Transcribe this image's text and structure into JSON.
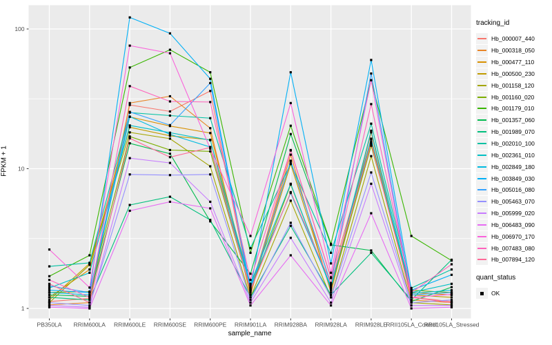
{
  "chart_data": {
    "type": "line",
    "title": "",
    "xlabel": "sample_name",
    "ylabel": "FPKM + 1",
    "y_scale": "log10",
    "y_ticks": [
      1,
      10,
      100
    ],
    "y_minor_breaks": [
      3.162,
      31.62
    ],
    "ylim": [
      0.93,
      135
    ],
    "grid": true,
    "legend_position": "right",
    "legend_title": "tracking_id",
    "quant_legend": {
      "title": "quant_status",
      "items": [
        {
          "label": "OK"
        }
      ]
    },
    "panel_bg": "#EBEBEB",
    "grid_color": "#FFFFFF",
    "tick_text_color": "#4D4D4D",
    "point_color": "#000000",
    "categories": [
      "PB350LA",
      "RRIM600LA",
      "RRIM600LE",
      "RRIM600SE",
      "RRIM600PE",
      "RRIM901LA",
      "RRIM928BA",
      "RRIM928LA",
      "RRIM928LE",
      "RRII105LA_Control",
      "RRII105LA_Stressed"
    ],
    "series": [
      {
        "name": "Hb_000007_440",
        "color": "#F8766D",
        "values": [
          1.12,
          1.18,
          28.6,
          25.7,
          36.0,
          1.3,
          13.5,
          1.65,
          16.2,
          1.2,
          1.12
        ]
      },
      {
        "name": "Hb_000318_050",
        "color": "#E88526",
        "values": [
          1.06,
          1.1,
          29.5,
          33.0,
          19.5,
          1.25,
          12.6,
          1.3,
          18.2,
          1.15,
          1.1
        ]
      },
      {
        "name": "Hb_000477_110",
        "color": "#D89000",
        "values": [
          1.2,
          1.9,
          23.5,
          20.2,
          18.0,
          1.4,
          11.3,
          1.5,
          15.6,
          1.3,
          1.25
        ]
      },
      {
        "name": "Hb_000500_230",
        "color": "#C09B00",
        "values": [
          1.15,
          2.1,
          19.8,
          17.2,
          16.1,
          1.3,
          10.8,
          1.35,
          15.1,
          1.25,
          1.2
        ]
      },
      {
        "name": "Hb_001158_120",
        "color": "#A3A500",
        "values": [
          1.1,
          2.05,
          18.2,
          16.4,
          10.4,
          1.2,
          5.9,
          1.2,
          12.3,
          1.1,
          1.06
        ]
      },
      {
        "name": "Hb_001160_020",
        "color": "#7CAE00",
        "values": [
          1.3,
          1.32,
          17.0,
          13.6,
          13.3,
          1.35,
          7.7,
          1.4,
          14.6,
          1.35,
          1.3
        ]
      },
      {
        "name": "Hb_001179_010",
        "color": "#39B600",
        "values": [
          1.7,
          2.4,
          53.0,
          71.0,
          49.0,
          2.5,
          20.3,
          2.9,
          43.0,
          3.3,
          2.2
        ]
      },
      {
        "name": "Hb_001357_060",
        "color": "#00BB4E",
        "values": [
          1.25,
          1.22,
          15.2,
          12.8,
          4.2,
          1.77,
          17.7,
          2.85,
          2.6,
          1.12,
          1.42
        ]
      },
      {
        "name": "Hb_001989_070",
        "color": "#00BF7D",
        "values": [
          1.2,
          1.15,
          5.5,
          6.3,
          4.3,
          1.2,
          3.9,
          1.25,
          2.5,
          1.15,
          2.23
        ]
      },
      {
        "name": "Hb_002010_100",
        "color": "#00C1A3",
        "values": [
          2.0,
          2.12,
          25.2,
          24.0,
          23.0,
          2.7,
          10.9,
          2.5,
          21.0,
          1.4,
          1.9
        ]
      },
      {
        "name": "Hb_002361_010",
        "color": "#00BFC4",
        "values": [
          1.4,
          1.8,
          20.4,
          18.1,
          16.0,
          1.5,
          7.8,
          1.39,
          18.7,
          1.3,
          1.5
        ]
      },
      {
        "name": "Hb_002849_180",
        "color": "#00BAE0",
        "values": [
          1.3,
          1.25,
          23.6,
          17.6,
          14.3,
          1.45,
          6.7,
          1.45,
          16.4,
          1.28,
          1.35
        ]
      },
      {
        "name": "Hb_003849_030",
        "color": "#00B0F6",
        "values": [
          1.35,
          1.3,
          121.0,
          93.0,
          44.0,
          1.4,
          49.0,
          2.1,
          60.0,
          1.35,
          1.74
        ]
      },
      {
        "name": "Hb_005016_080",
        "color": "#35A2FF",
        "values": [
          1.45,
          1.3,
          25.5,
          20.5,
          41.0,
          1.35,
          11.4,
          1.5,
          48.0,
          1.25,
          1.3
        ]
      },
      {
        "name": "Hb_005463_070",
        "color": "#9590FF",
        "values": [
          1.1,
          1.05,
          9.1,
          9.0,
          9.1,
          1.15,
          4.1,
          1.2,
          9.4,
          1.1,
          1.15
        ]
      },
      {
        "name": "Hb_005999_020",
        "color": "#C77CFF",
        "values": [
          1.05,
          1.02,
          11.9,
          11.0,
          5.8,
          1.1,
          3.2,
          1.1,
          7.8,
          1.05,
          1.05
        ]
      },
      {
        "name": "Hb_006483_090",
        "color": "#E76BF3",
        "values": [
          1.02,
          1.0,
          5.0,
          5.8,
          5.2,
          1.05,
          2.4,
          1.05,
          4.8,
          1.0,
          1.02
        ]
      },
      {
        "name": "Hb_006970_170",
        "color": "#FA62DB",
        "values": [
          2.64,
          1.41,
          76.0,
          67.0,
          13.9,
          3.3,
          29.5,
          1.8,
          43.0,
          1.2,
          1.26
        ]
      },
      {
        "name": "Hb_007483_080",
        "color": "#FF62BC",
        "values": [
          1.6,
          1.2,
          39.0,
          30.3,
          30.0,
          1.6,
          13.6,
          1.67,
          29.0,
          1.3,
          2.07
        ]
      },
      {
        "name": "Hb_007894_120",
        "color": "#FF6A98",
        "values": [
          1.5,
          1.1,
          16.5,
          12.1,
          14.2,
          1.35,
          6.8,
          1.52,
          15.2,
          1.2,
          1.1
        ]
      }
    ]
  }
}
